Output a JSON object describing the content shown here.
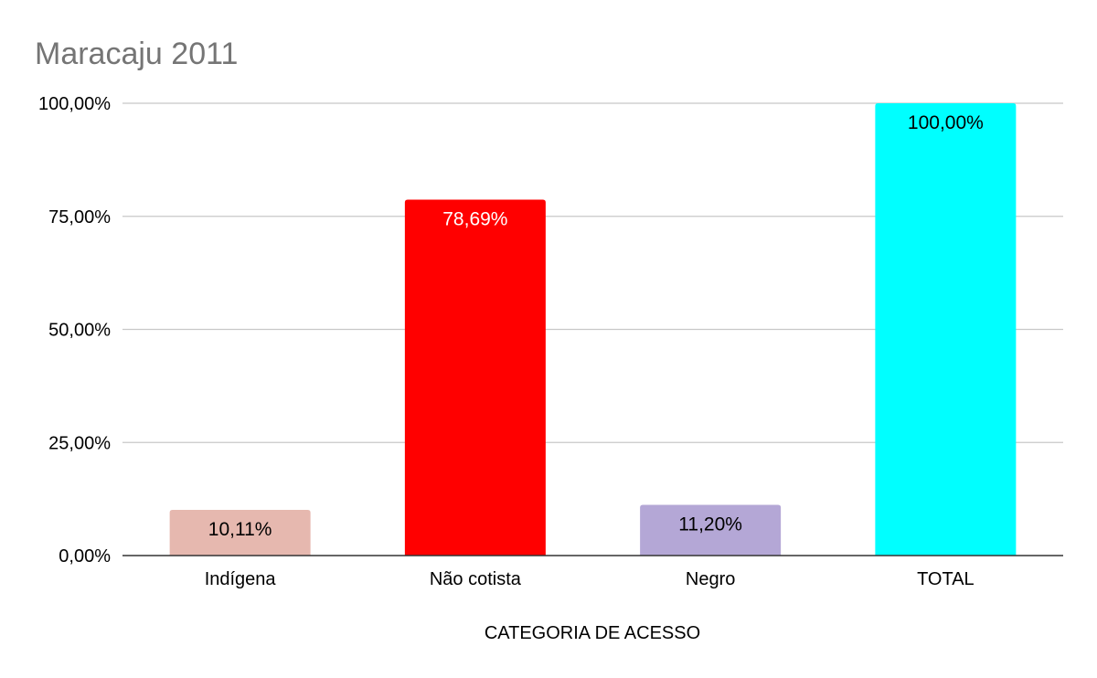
{
  "chart_data": {
    "type": "bar",
    "title": "Maracaju 2011",
    "xlabel": "CATEGORIA DE ACESSO",
    "ylabel": "",
    "categories": [
      "Indígena",
      "Não cotista",
      "Negro",
      "TOTAL"
    ],
    "values": [
      10.11,
      78.69,
      11.2,
      100.0
    ],
    "value_labels": [
      "10,11%",
      "78,69%",
      "11,20%",
      "100,00%"
    ],
    "bar_colors": [
      "#e6b8af",
      "#ff0000",
      "#b4a7d6",
      "#00ffff"
    ],
    "label_colors": [
      "#000000",
      "#ffffff",
      "#000000",
      "#000000"
    ],
    "ylim": [
      0,
      100
    ],
    "yticks": [
      0,
      25,
      50,
      75,
      100
    ],
    "ytick_labels": [
      "0,00%",
      "25,00%",
      "50,00%",
      "75,00%",
      "100,00%"
    ],
    "grid": true,
    "legend": "none"
  }
}
